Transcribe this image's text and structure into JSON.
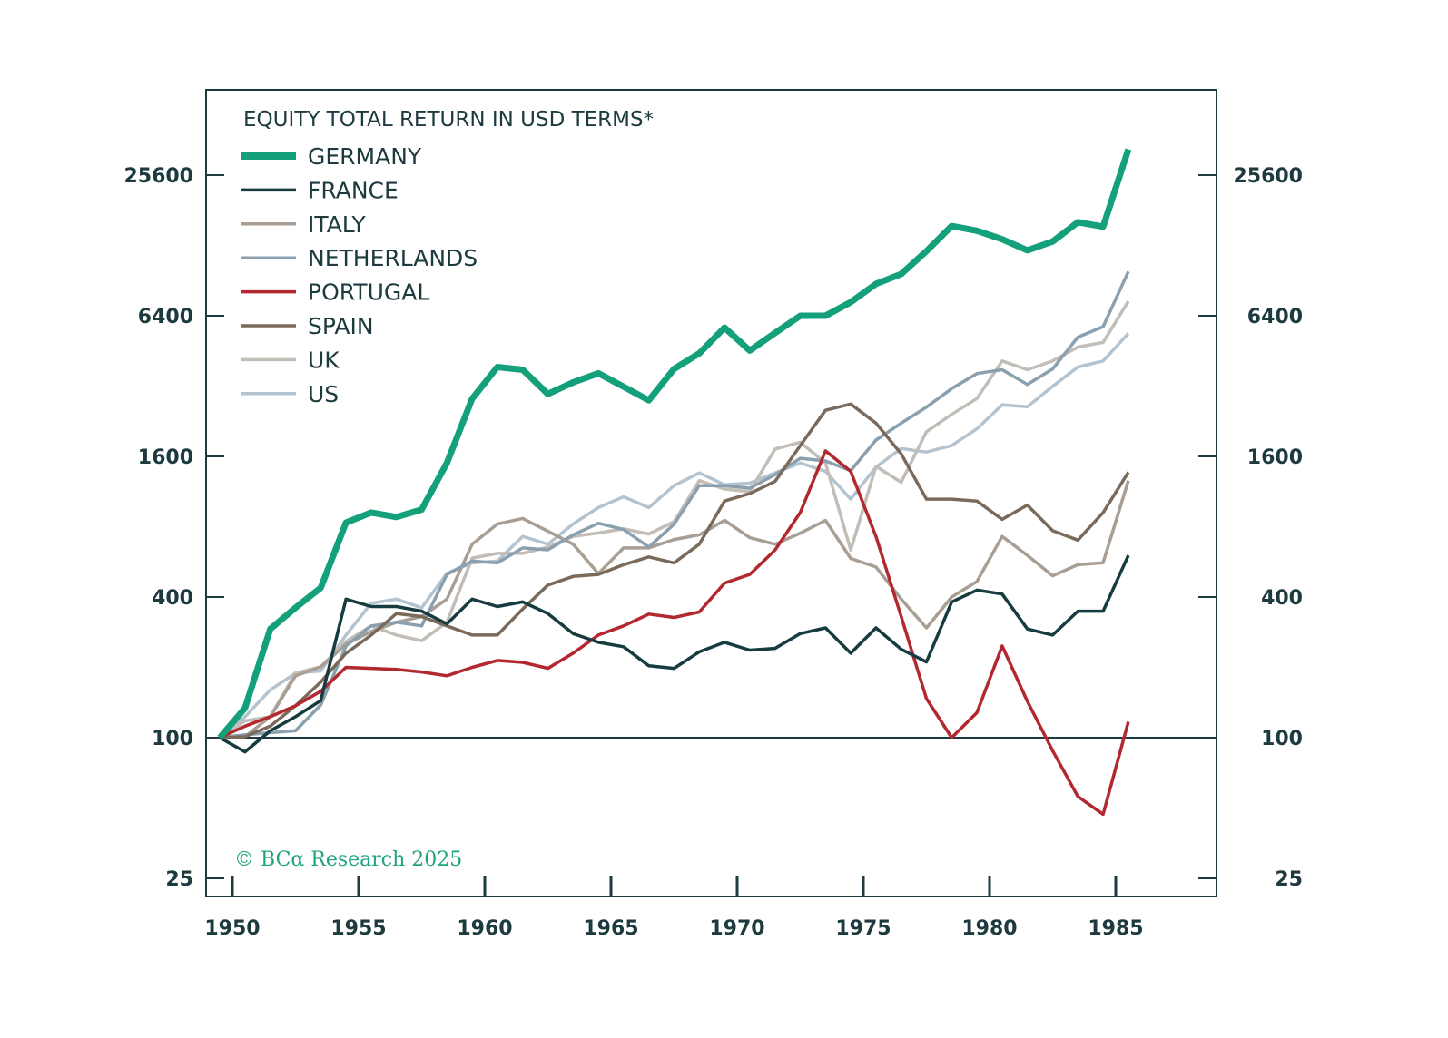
{
  "chart_data": {
    "type": "line",
    "title": "EQUITY TOTAL RETURN IN USD TERMS*",
    "xlabel": "",
    "ylabel": "",
    "yscale": "log",
    "ylim": [
      25,
      51200
    ],
    "xlim": [
      1949,
      1989
    ],
    "y_ticks": [
      25,
      100,
      400,
      1600,
      6400,
      25600
    ],
    "y_tick_labels": [
      "25",
      "100",
      "400",
      "1600",
      "6400",
      "25600"
    ],
    "x_ticks": [
      1950,
      1955,
      1960,
      1965,
      1970,
      1975,
      1980,
      1985
    ],
    "x_tick_labels": [
      "1950",
      "1955",
      "1960",
      "1965",
      "1970",
      "1975",
      "1980",
      "1985"
    ],
    "baseline": 100,
    "legend_position": "top-left",
    "grid": false,
    "credit": "© BCα Research 2025",
    "x": [
      1950,
      1951,
      1952,
      1953,
      1954,
      1955,
      1956,
      1957,
      1958,
      1959,
      1960,
      1961,
      1962,
      1963,
      1964,
      1965,
      1966,
      1967,
      1968,
      1969,
      1970,
      1971,
      1972,
      1973,
      1974,
      1975,
      1976,
      1977,
      1978,
      1979,
      1980,
      1981,
      1982,
      1983,
      1984,
      1985,
      1986
    ],
    "series": [
      {
        "name": "GERMANY",
        "color": "#13a07a",
        "width": 7,
        "values": [
          100,
          134,
          292,
          360,
          438,
          833,
          920,
          880,
          947,
          1500,
          2825,
          3860,
          3760,
          2960,
          3320,
          3630,
          3180,
          2780,
          3790,
          4420,
          5690,
          4540,
          5400,
          6400,
          6400,
          7320,
          8760,
          9660,
          12100,
          15500,
          14800,
          13600,
          12200,
          13300,
          16100,
          15400,
          33000
        ]
      },
      {
        "name": "FRANCE",
        "color": "#173c40",
        "width": 3.5,
        "values": [
          100,
          87,
          107,
          123,
          144,
          392,
          364,
          364,
          348,
          307,
          392,
          364,
          381,
          340,
          279,
          256,
          245,
          203,
          198,
          233,
          256,
          237,
          241,
          279,
          295,
          230,
          295,
          239,
          211,
          381,
          428,
          412,
          292,
          275,
          348,
          348,
          603
        ]
      },
      {
        "name": "ITALY",
        "color": "#a89e93",
        "width": 3.5,
        "values": [
          100,
          101,
          123,
          184,
          201,
          251,
          285,
          312,
          330,
          392,
          673,
          822,
          868,
          766,
          673,
          504,
          649,
          649,
          705,
          738,
          852,
          718,
          673,
          751,
          852,
          585,
          538,
          392,
          295,
          400,
          466,
          727,
          603,
          493,
          550,
          561,
          1260
        ]
      },
      {
        "name": "NETHERLANDS",
        "color": "#8aa0ae",
        "width": 3.5,
        "values": [
          100,
          103,
          105,
          107,
          138,
          247,
          301,
          312,
          301,
          500,
          570,
          560,
          649,
          637,
          738,
          828,
          778,
          655,
          820,
          1200,
          1200,
          1170,
          1335,
          1570,
          1530,
          1390,
          1880,
          2220,
          2600,
          3120,
          3620,
          3760,
          3250,
          3790,
          5180,
          5750,
          9890
        ]
      },
      {
        "name": "PORTUGAL",
        "color": "#b3272f",
        "width": 3.5,
        "values": [
          100,
          112,
          123,
          137,
          158,
          200,
          198,
          196,
          191,
          184,
          200,
          214,
          210,
          198,
          230,
          275,
          301,
          338,
          327,
          345,
          459,
          500,
          635,
          920,
          1690,
          1380,
          727,
          330,
          147,
          100,
          128,
          247,
          143,
          88,
          56,
          47,
          117
        ]
      },
      {
        "name": "SPAIN",
        "color": "#7a6a5b",
        "width": 3.5,
        "values": [
          100,
          101,
          112,
          137,
          173,
          230,
          275,
          340,
          330,
          301,
          275,
          275,
          355,
          450,
          490,
          500,
          550,
          594,
          560,
          673,
          1030,
          1110,
          1250,
          1780,
          2520,
          2680,
          2220,
          1640,
          1050,
          1050,
          1030,
          860,
          991,
          769,
          701,
          920,
          1370
        ]
      },
      {
        "name": "UK",
        "color": "#c2bdb6",
        "width": 3.5,
        "values": [
          100,
          118,
          123,
          189,
          201,
          258,
          301,
          275,
          260,
          312,
          587,
          615,
          615,
          655,
          727,
          752,
          783,
          745,
          840,
          1260,
          1160,
          1130,
          1720,
          1840,
          1500,
          635,
          1450,
          1240,
          2040,
          2420,
          2830,
          4100,
          3760,
          4100,
          4700,
          4920,
          7380
        ]
      },
      {
        "name": "US",
        "color": "#b3c3cf",
        "width": 3.5,
        "values": [
          100,
          123,
          160,
          189,
          193,
          275,
          376,
          392,
          360,
          505,
          560,
          570,
          727,
          673,
          822,
          966,
          1075,
          966,
          1200,
          1360,
          1210,
          1230,
          1360,
          1500,
          1380,
          1050,
          1440,
          1730,
          1670,
          1780,
          2100,
          2660,
          2610,
          3190,
          3860,
          4100,
          5370
        ]
      }
    ]
  }
}
